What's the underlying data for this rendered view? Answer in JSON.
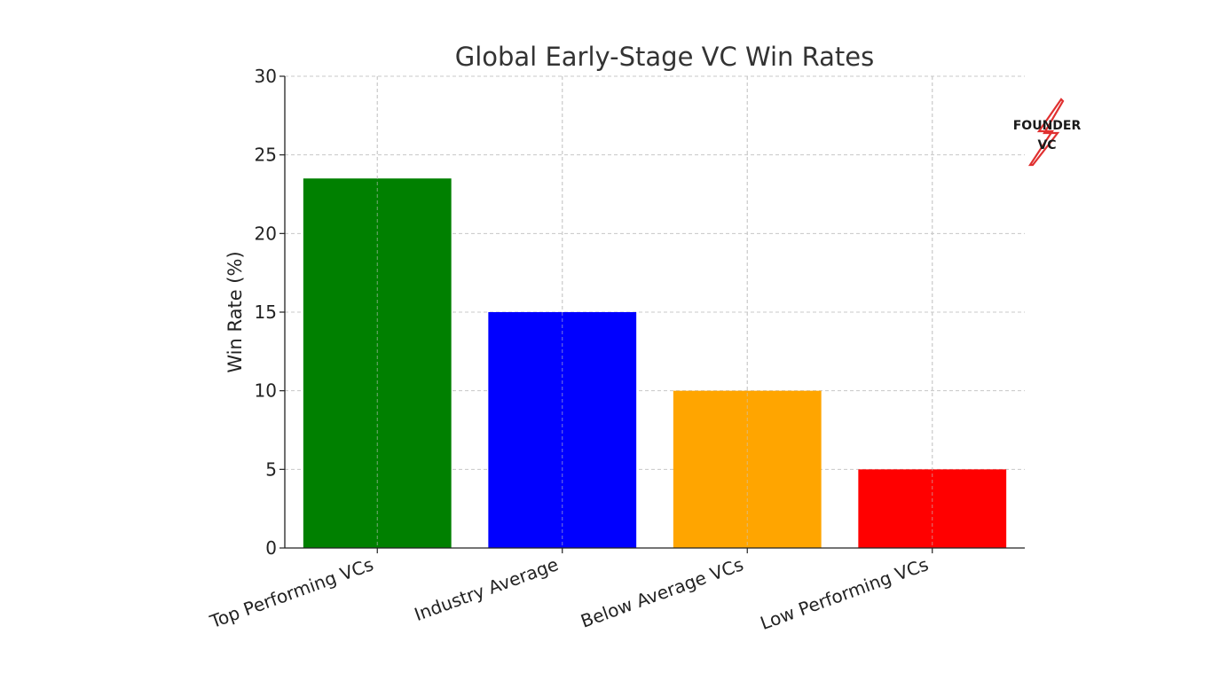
{
  "chart_data": {
    "type": "bar",
    "title": "Global Early-Stage VC Win Rates",
    "xlabel": "",
    "ylabel": "Win Rate (%)",
    "categories": [
      "Top Performing VCs",
      "Industry Average",
      "Below Average VCs",
      "Low Performing VCs"
    ],
    "values": [
      23.5,
      15,
      10,
      5
    ],
    "colors": [
      "#008000",
      "#0000ff",
      "#ffa500",
      "#ff0000"
    ],
    "ylim": [
      0,
      30
    ],
    "yticks": [
      0,
      5,
      10,
      15,
      20,
      25,
      30
    ],
    "grid": true
  },
  "logo": {
    "line1": "FOUNDER",
    "line2": "VC",
    "bolt_color": "#e03030"
  }
}
